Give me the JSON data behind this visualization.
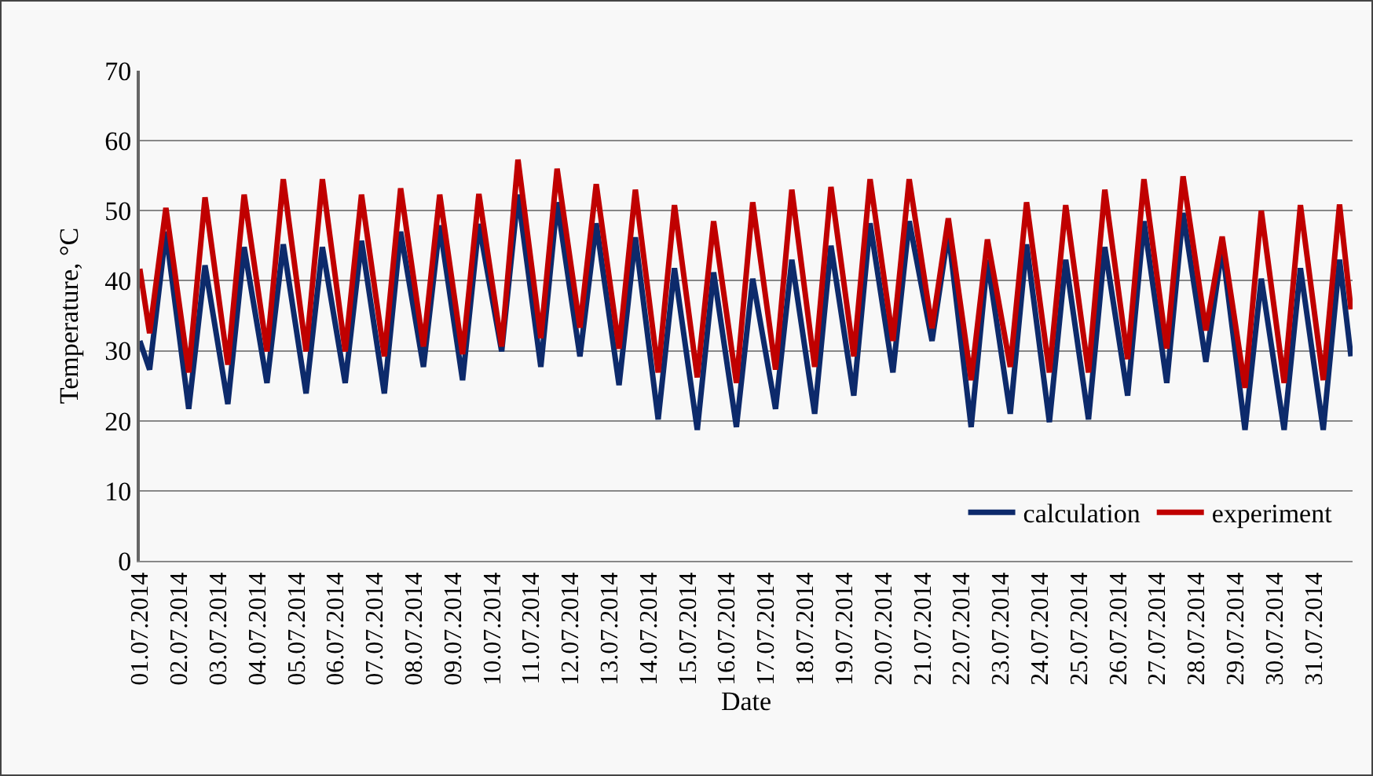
{
  "chart_data": {
    "type": "line",
    "xlabel": "Date",
    "ylabel": "Temperature, °C",
    "x": [
      "2014-07-01T00:00",
      "2014-07-01T06:00",
      "2014-07-01T16:00",
      "2014-07-02T06:00",
      "2014-07-02T16:00",
      "2014-07-03T06:00",
      "2014-07-03T16:00",
      "2014-07-04T06:00",
      "2014-07-04T16:00",
      "2014-07-05T06:00",
      "2014-07-05T16:00",
      "2014-07-06T06:00",
      "2014-07-06T16:00",
      "2014-07-07T06:00",
      "2014-07-07T16:00",
      "2014-07-08T06:00",
      "2014-07-08T16:00",
      "2014-07-09T06:00",
      "2014-07-09T16:00",
      "2014-07-10T06:00",
      "2014-07-10T16:00",
      "2014-07-11T06:00",
      "2014-07-11T16:00",
      "2014-07-12T06:00",
      "2014-07-12T16:00",
      "2014-07-13T06:00",
      "2014-07-13T16:00",
      "2014-07-14T06:00",
      "2014-07-14T16:00",
      "2014-07-15T06:00",
      "2014-07-15T16:00",
      "2014-07-16T06:00",
      "2014-07-16T16:00",
      "2014-07-17T06:00",
      "2014-07-17T16:00",
      "2014-07-18T06:00",
      "2014-07-18T16:00",
      "2014-07-19T06:00",
      "2014-07-19T16:00",
      "2014-07-20T06:00",
      "2014-07-20T16:00",
      "2014-07-21T06:00",
      "2014-07-21T16:00",
      "2014-07-22T06:00",
      "2014-07-22T16:00",
      "2014-07-23T06:00",
      "2014-07-23T16:00",
      "2014-07-24T06:00",
      "2014-07-24T16:00",
      "2014-07-25T06:00",
      "2014-07-25T16:00",
      "2014-07-26T06:00",
      "2014-07-26T16:00",
      "2014-07-27T06:00",
      "2014-07-27T16:00",
      "2014-07-28T06:00",
      "2014-07-28T16:00",
      "2014-07-29T06:00",
      "2014-07-29T16:00",
      "2014-07-30T06:00",
      "2014-07-30T16:00",
      "2014-07-31T06:00",
      "2014-07-31T16:00",
      "2014-07-31T23:00"
    ],
    "series": [
      {
        "name": "calculation",
        "color": "#0d2a6b",
        "values": [
          31.4,
          27.3,
          47.0,
          21.7,
          42.2,
          22.4,
          44.8,
          25.4,
          45.2,
          23.9,
          44.8,
          25.4,
          45.7,
          23.9,
          47.0,
          27.7,
          47.9,
          25.8,
          48.1,
          29.9,
          52.3,
          27.7,
          51.2,
          29.2,
          48.2,
          25.1,
          46.2,
          20.2,
          41.8,
          18.7,
          41.2,
          19.1,
          40.3,
          21.7,
          43.0,
          21.0,
          45.0,
          23.6,
          48.2,
          26.9,
          48.5,
          31.4,
          47.0,
          19.1,
          43.0,
          21.0,
          45.2,
          19.8,
          43.0,
          20.2,
          44.8,
          23.6,
          48.5,
          25.4,
          49.7,
          28.4,
          44.8,
          18.7,
          40.3,
          18.7,
          41.8,
          18.7,
          43.0,
          29.2
        ]
      },
      {
        "name": "experiment",
        "color": "#c00000",
        "values": [
          41.7,
          32.5,
          50.4,
          26.9,
          51.9,
          28.0,
          52.3,
          29.9,
          54.5,
          29.9,
          54.5,
          29.9,
          52.3,
          29.2,
          53.2,
          30.6,
          52.3,
          29.5,
          52.4,
          30.6,
          57.3,
          31.8,
          56.0,
          33.3,
          53.8,
          30.3,
          53.0,
          26.9,
          50.8,
          26.2,
          48.5,
          25.4,
          51.2,
          27.3,
          53.0,
          27.7,
          53.4,
          29.2,
          54.5,
          31.4,
          54.5,
          33.2,
          48.9,
          25.8,
          45.9,
          27.7,
          51.2,
          26.9,
          50.8,
          26.9,
          53.0,
          28.8,
          54.5,
          30.3,
          54.9,
          32.9,
          46.3,
          24.7,
          50.0,
          25.4,
          50.8,
          25.8,
          50.9,
          35.9
        ]
      }
    ],
    "xlim": [
      "2014-07-01",
      "2014-08-01"
    ],
    "xticks": [
      {
        "value": "2014-07-01",
        "label": "01.07.2014"
      },
      {
        "value": "2014-07-02",
        "label": "02.07.2014"
      },
      {
        "value": "2014-07-03",
        "label": "03.07.2014"
      },
      {
        "value": "2014-07-04",
        "label": "04.07.2014"
      },
      {
        "value": "2014-07-05",
        "label": "05.07.2014"
      },
      {
        "value": "2014-07-06",
        "label": "06.07.2014"
      },
      {
        "value": "2014-07-07",
        "label": "07.07.2014"
      },
      {
        "value": "2014-07-08",
        "label": "08.07.2014"
      },
      {
        "value": "2014-07-09",
        "label": "09.07.2014"
      },
      {
        "value": "2014-07-10",
        "label": "10.07.2014"
      },
      {
        "value": "2014-07-11",
        "label": "11.07.2014"
      },
      {
        "value": "2014-07-12",
        "label": "12.07.2014"
      },
      {
        "value": "2014-07-13",
        "label": "13.07.2014"
      },
      {
        "value": "2014-07-14",
        "label": "14.07.2014"
      },
      {
        "value": "2014-07-15",
        "label": "15.07.2014"
      },
      {
        "value": "2014-07-16",
        "label": "16.07.2014"
      },
      {
        "value": "2014-07-17",
        "label": "17.07.2014"
      },
      {
        "value": "2014-07-18",
        "label": "18.07.2014"
      },
      {
        "value": "2014-07-19",
        "label": "19.07.2014"
      },
      {
        "value": "2014-07-20",
        "label": "20.07.2014"
      },
      {
        "value": "2014-07-21",
        "label": "21.07.2014"
      },
      {
        "value": "2014-07-22",
        "label": "22.07.2014"
      },
      {
        "value": "2014-07-23",
        "label": "23.07.2014"
      },
      {
        "value": "2014-07-24",
        "label": "24.07.2014"
      },
      {
        "value": "2014-07-25",
        "label": "25.07.2014"
      },
      {
        "value": "2014-07-26",
        "label": "26.07.2014"
      },
      {
        "value": "2014-07-27",
        "label": "27.07.2014"
      },
      {
        "value": "2014-07-28",
        "label": "28.07.2014"
      },
      {
        "value": "2014-07-29",
        "label": "29.07.2014"
      },
      {
        "value": "2014-07-30",
        "label": "30.07.2014"
      },
      {
        "value": "2014-07-31",
        "label": "31.07.2014"
      }
    ],
    "ylim": [
      0,
      70
    ],
    "yticks": [
      0,
      10,
      20,
      30,
      40,
      50,
      60,
      70
    ],
    "grid": "y",
    "legend": "bottom right",
    "line_style": "solid",
    "marker": "none"
  }
}
